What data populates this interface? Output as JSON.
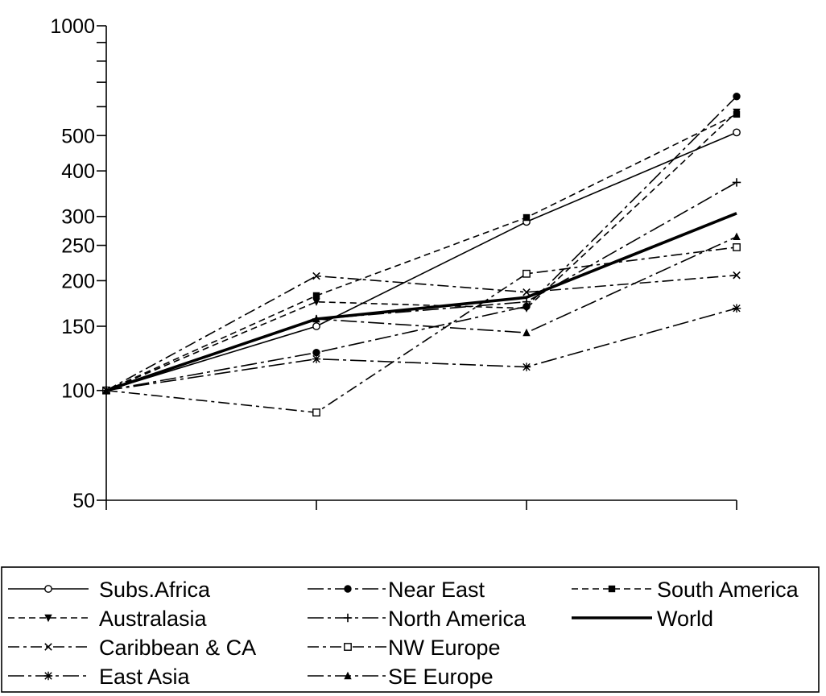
{
  "chart_data": {
    "type": "line",
    "title": "",
    "xlabel": "",
    "ylabel": "",
    "x": [
      1,
      2,
      3,
      4
    ],
    "y_scale": "log",
    "ylim": [
      50,
      1000
    ],
    "yticks": [
      50,
      100,
      150,
      200,
      250,
      300,
      400,
      500,
      1000
    ],
    "yticks_unlabeled": [
      600,
      700,
      800,
      900
    ],
    "grid": false,
    "legend_position": "bottom",
    "series": [
      {
        "name": "Subs.Africa",
        "values": [
          100,
          150,
          290,
          510
        ],
        "dash": "",
        "width": 1.6,
        "marker": "circle-open"
      },
      {
        "name": "Near East",
        "values": [
          100,
          127,
          170,
          640
        ],
        "dash": "20,5,4,5",
        "width": 1.6,
        "marker": "circle-filled"
      },
      {
        "name": "South America",
        "values": [
          100,
          182,
          298,
          572
        ],
        "dash": "8,5",
        "width": 1.6,
        "marker": "square-filled"
      },
      {
        "name": "Australasia",
        "values": [
          100,
          175,
          168,
          580
        ],
        "dash": "8,5",
        "width": 1.6,
        "marker": "triangle-down"
      },
      {
        "name": "North America",
        "values": [
          100,
          157,
          175,
          372
        ],
        "dash": "20,5,4,5",
        "width": 1.6,
        "marker": "plus"
      },
      {
        "name": "World",
        "values": [
          100,
          157,
          180,
          306
        ],
        "dash": "",
        "width": 3.6,
        "marker": "none"
      },
      {
        "name": "Caribbean & CA",
        "values": [
          100,
          206,
          186,
          207
        ],
        "dash": "14,5,4,5",
        "width": 1.6,
        "marker": "x"
      },
      {
        "name": "NW Europe",
        "values": [
          100,
          87,
          209,
          247
        ],
        "dash": "14,5,4,5",
        "width": 1.6,
        "marker": "square-open"
      },
      {
        "name": "East Asia",
        "values": [
          100,
          122,
          116,
          168
        ],
        "dash": "20,5,4,5",
        "width": 1.6,
        "marker": "star"
      },
      {
        "name": "SE Europe",
        "values": [
          100,
          157,
          144,
          264
        ],
        "dash": "20,5,4,5",
        "width": 1.6,
        "marker": "triangle-up"
      }
    ]
  }
}
